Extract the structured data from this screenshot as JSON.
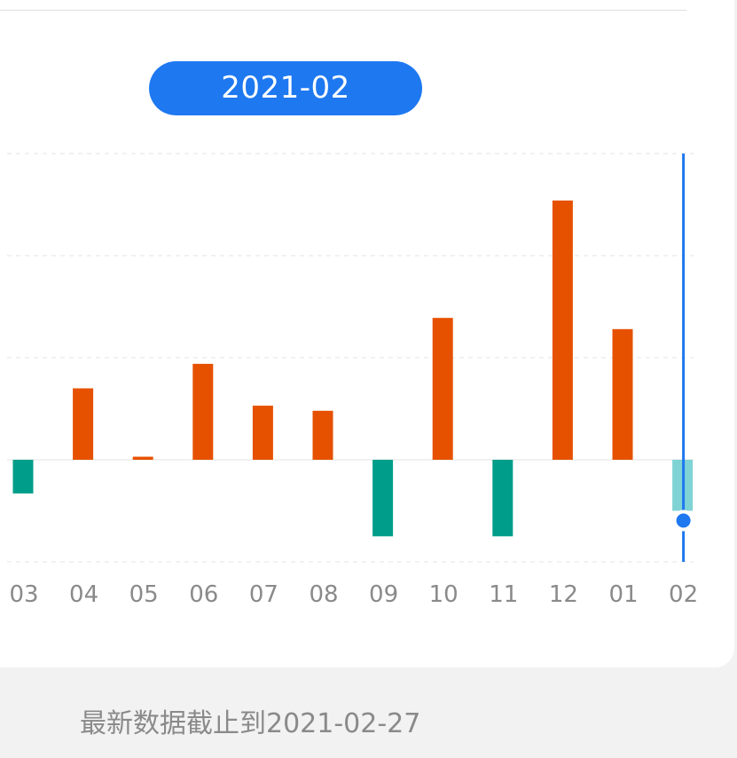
{
  "selected_month": "2021-02",
  "footer": {
    "note": "最新数据截止到2021-02-27"
  },
  "colors": {
    "positive": "#e65100",
    "negative": "#009e8a",
    "selected_negative": "#7fd3d5",
    "cursor": "#1e78f0",
    "grid": "#dfe6ea",
    "tick_text": "#8a8a8a"
  },
  "chart_data": {
    "type": "bar",
    "categories": [
      "03",
      "04",
      "05",
      "06",
      "07",
      "08",
      "09",
      "10",
      "11",
      "12",
      "01",
      "02"
    ],
    "values": [
      -0.33,
      0.7,
      0.03,
      0.94,
      0.53,
      0.48,
      -0.75,
      1.39,
      -0.75,
      2.54,
      1.28,
      -0.5
    ],
    "selected_index": 11,
    "ylim": [
      -1,
      3
    ],
    "grid": true,
    "title": "",
    "xlabel": "",
    "ylabel": ""
  }
}
